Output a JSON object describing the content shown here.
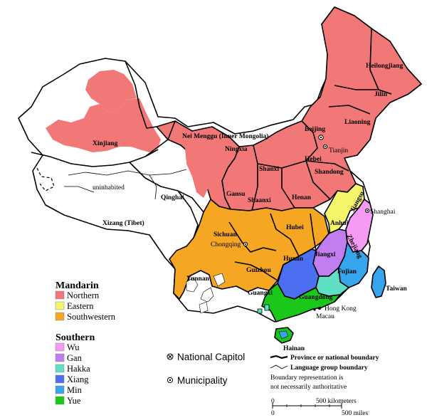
{
  "colors": {
    "northern": "#f27777",
    "eastern": "#f5f56c",
    "southwestern": "#f5a623",
    "wu": "#f59af5",
    "gan": "#c07ef0",
    "hakka": "#5fe0c4",
    "xiang": "#4b6ff0",
    "min": "#36a5ec",
    "yue": "#19c819",
    "land": "#ffffff",
    "border": "#000000"
  },
  "regions": {
    "heilongjiang": "Heilongjiang",
    "jilin": "Jilin",
    "liaoning": "Liaoning",
    "beijing": "Beijing",
    "tianjin": "Tianjin",
    "hebei": "Hebei",
    "shanxi": "Shanxi",
    "shandong": "Shandong",
    "henan": "Henan",
    "shaanxi": "Shaanxi",
    "gansu": "Gansu",
    "ningxia": "Ningxia",
    "nei_menggu": "Nei Menggu (Inner Mongolia)",
    "xinjiang": "Xinjiang",
    "qinghai": "Qinghai",
    "xizang": "Xizang (Tibet)",
    "uninhabited": "uninhabited",
    "sichuan": "Sichuan",
    "chongqing": "Chongqing",
    "hubei": "Hubei",
    "anhui": "Anhui",
    "jiangsu": "Jiangsu",
    "shanghai": "Shanghai",
    "zhejiang": "Zhejiang",
    "jiangxi": "Jiangxi",
    "hunan": "Hunan",
    "fujian": "Fujian",
    "guizhou": "Guizhou",
    "yunnan": "Yunnan",
    "guangxi": "Guangxi",
    "guangdong": "Guangdong",
    "hong_kong": "Hong Kong",
    "macau": "Macau",
    "hainan": "Hainan",
    "taiwan": "Taiwan"
  },
  "legend": {
    "mandarin_heading": "Mandarin",
    "mandarin_items": [
      {
        "label": "Northern",
        "color": "#f27777"
      },
      {
        "label": "Eastern",
        "color": "#f5f56c"
      },
      {
        "label": "Southwestern",
        "color": "#f5a623"
      }
    ],
    "southern_heading": "Southern",
    "southern_items": [
      {
        "label": "Wu",
        "color": "#f59af5"
      },
      {
        "label": "Gan",
        "color": "#c07ef0"
      },
      {
        "label": "Hakka",
        "color": "#5fe0c4"
      },
      {
        "label": "Xiang",
        "color": "#4b6ff0"
      },
      {
        "label": "Min",
        "color": "#36a5ec"
      },
      {
        "label": "Yue",
        "color": "#19c819"
      }
    ],
    "national_capitol": "National Capitol",
    "municipality": "Municipality",
    "province_boundary": "Province or national boundary",
    "language_boundary": "Language group boundary",
    "note_line1": "Boundary representation is",
    "note_line2": "not necessarily authoritative"
  },
  "scale": {
    "km_zero": "0",
    "km_label": "500 kilometers",
    "mi_zero": "0",
    "mi_label": "500 miles"
  }
}
